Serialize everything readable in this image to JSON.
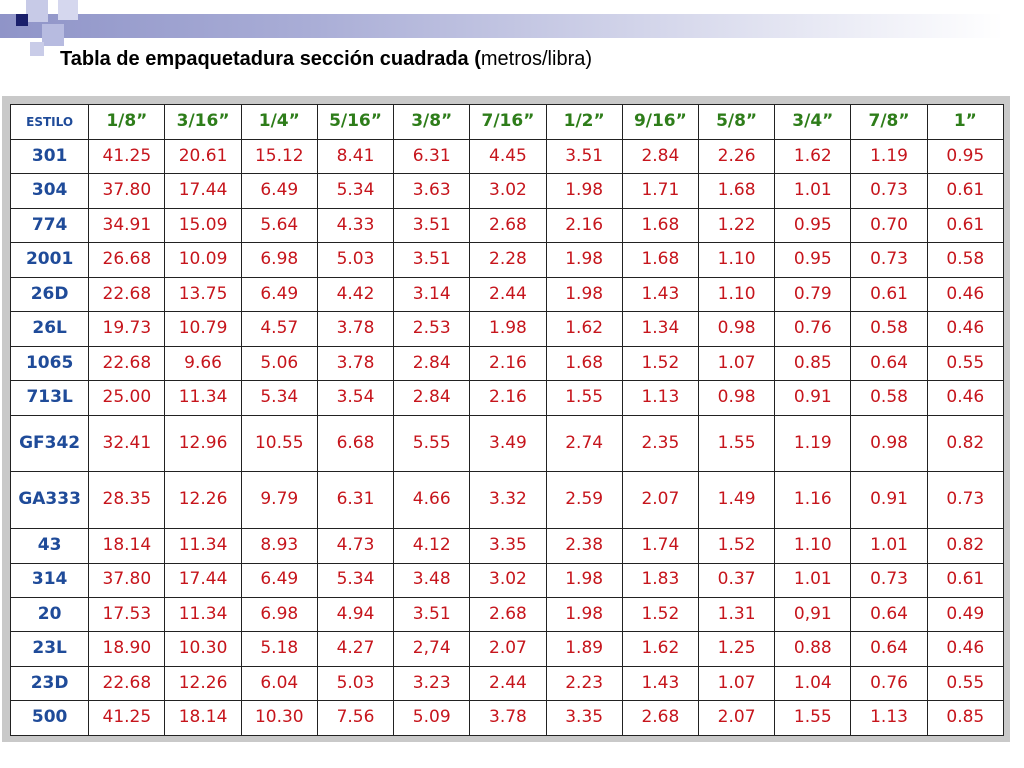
{
  "page": {
    "title_bold": "Tabla de empaquetadura sección cuadrada (",
    "title_normal": "metros/libra)"
  },
  "table": {
    "header_label": "ESTILO",
    "columns": [
      "1/8”",
      "3/16”",
      "1/4”",
      "5/16”",
      "3/8”",
      "7/16”",
      "1/2”",
      "9/16”",
      "5/8”",
      "3/4”",
      "7/8”",
      "1”"
    ],
    "rows": [
      {
        "style": "301",
        "values": [
          "41.25",
          "20.61",
          "15.12",
          "8.41",
          "6.31",
          "4.45",
          "3.51",
          "2.84",
          "2.26",
          "1.62",
          "1.19",
          "0.95"
        ]
      },
      {
        "style": "304",
        "values": [
          "37.80",
          "17.44",
          "6.49",
          "5.34",
          "3.63",
          "3.02",
          "1.98",
          "1.71",
          "1.68",
          "1.01",
          "0.73",
          "0.61"
        ]
      },
      {
        "style": "774",
        "values": [
          "34.91",
          "15.09",
          "5.64",
          "4.33",
          "3.51",
          "2.68",
          "2.16",
          "1.68",
          "1.22",
          "0.95",
          "0.70",
          "0.61"
        ]
      },
      {
        "style": "2001",
        "values": [
          "26.68",
          "10.09",
          "6.98",
          "5.03",
          "3.51",
          "2.28",
          "1.98",
          "1.68",
          "1.10",
          "0.95",
          "0.73",
          "0.58"
        ]
      },
      {
        "style": "26D",
        "values": [
          "22.68",
          "13.75",
          "6.49",
          "4.42",
          "3.14",
          "2.44",
          "1.98",
          "1.43",
          "1.10",
          "0.79",
          "0.61",
          "0.46"
        ]
      },
      {
        "style": "26L",
        "values": [
          "19.73",
          "10.79",
          "4.57",
          "3.78",
          "2.53",
          "1.98",
          "1.62",
          "1.34",
          "0.98",
          "0.76",
          "0.58",
          "0.46"
        ]
      },
      {
        "style": "1065",
        "values": [
          "22.68",
          "9.66",
          "5.06",
          "3.78",
          "2.84",
          "2.16",
          "1.68",
          "1.52",
          "1.07",
          "0.85",
          "0.64",
          "0.55"
        ]
      },
      {
        "style": "713L",
        "values": [
          "25.00",
          "11.34",
          "5.34",
          "3.54",
          "2.84",
          "2.16",
          "1.55",
          "1.13",
          "0.98",
          "0.91",
          "0.58",
          "0.46"
        ]
      },
      {
        "style": "GF342",
        "tall": true,
        "values": [
          "32.41",
          "12.96",
          "10.55",
          "6.68",
          "5.55",
          "3.49",
          "2.74",
          "2.35",
          "1.55",
          "1.19",
          "0.98",
          "0.82"
        ]
      },
      {
        "style": "GA333",
        "tall": true,
        "values": [
          "28.35",
          "12.26",
          "9.79",
          "6.31",
          "4.66",
          "3.32",
          "2.59",
          "2.07",
          "1.49",
          "1.16",
          "0.91",
          "0.73"
        ]
      },
      {
        "style": "43",
        "values": [
          "18.14",
          "11.34",
          "8.93",
          "4.73",
          "4.12",
          "3.35",
          "2.38",
          "1.74",
          "1.52",
          "1.10",
          "1.01",
          "0.82"
        ]
      },
      {
        "style": "314",
        "values": [
          "37.80",
          "17.44",
          "6.49",
          "5.34",
          "3.48",
          "3.02",
          "1.98",
          "1.83",
          "0.37",
          "1.01",
          "0.73",
          "0.61"
        ]
      },
      {
        "style": "20",
        "values": [
          "17.53",
          "11.34",
          "6.98",
          "4.94",
          "3.51",
          "2.68",
          "1.98",
          "1.52",
          "1.31",
          "0,91",
          "0.64",
          "0.49"
        ]
      },
      {
        "style": "23L",
        "values": [
          "18.90",
          "10.30",
          "5.18",
          "4.27",
          "2,74",
          "2.07",
          "1.89",
          "1.62",
          "1.25",
          "0.88",
          "0.64",
          "0.46"
        ]
      },
      {
        "style": "23D",
        "values": [
          "22.68",
          "12.26",
          "6.04",
          "5.03",
          "3.23",
          "2.44",
          "2.23",
          "1.43",
          "1.07",
          "1.04",
          "0.76",
          "0.55"
        ]
      },
      {
        "style": "500",
        "values": [
          "41.25",
          "18.14",
          "10.30",
          "7.56",
          "5.09",
          "3.78",
          "3.35",
          "2.68",
          "2.07",
          "1.55",
          "1.13",
          "0.85"
        ]
      }
    ]
  },
  "colors": {
    "header_sizes": "#2e7d1a",
    "style_names": "#1f4b99",
    "values": "#c6151c"
  }
}
